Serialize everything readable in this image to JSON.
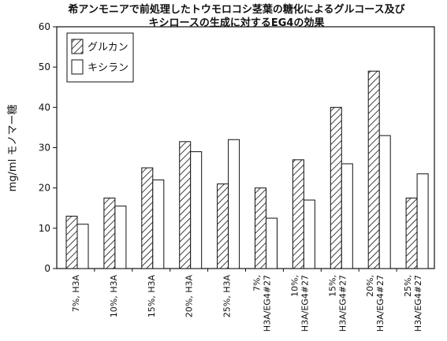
{
  "chart_data": {
    "type": "bar",
    "title_line1": "希アンモニアで前処理したトウモロコシ茎葉の糖化によるグルコース及び",
    "title_line2": "キシロースの生成に対するEG4の効果",
    "ylabel": "mg/ml モノマー糖",
    "xlabel": "",
    "ylim": [
      0,
      60
    ],
    "yticks": [
      0,
      10,
      20,
      30,
      40,
      50,
      60
    ],
    "grid": false,
    "legend_position": "top-left",
    "categories": [
      [
        "7%, H3A"
      ],
      [
        "10%, H3A"
      ],
      [
        "15%, H3A"
      ],
      [
        "20%, H3A"
      ],
      [
        "25%, H3A"
      ],
      [
        "7%,",
        "H3A/EG4#27"
      ],
      [
        "10%,",
        "H3A/EG4#27"
      ],
      [
        "15%,",
        "H3A/EG4#27"
      ],
      [
        "20%,",
        "H3A/EG4#27"
      ],
      [
        "25%,",
        "H3A/EG4#27"
      ]
    ],
    "series": [
      {
        "name": "グルカン",
        "pattern": "hatched",
        "values": [
          13,
          17.5,
          25,
          31.5,
          21,
          20,
          27,
          40,
          49,
          17.5
        ]
      },
      {
        "name": "キシラン",
        "pattern": "plain",
        "values": [
          11,
          15.5,
          22,
          29,
          32,
          12.5,
          17,
          26,
          33,
          23.5
        ]
      }
    ]
  }
}
